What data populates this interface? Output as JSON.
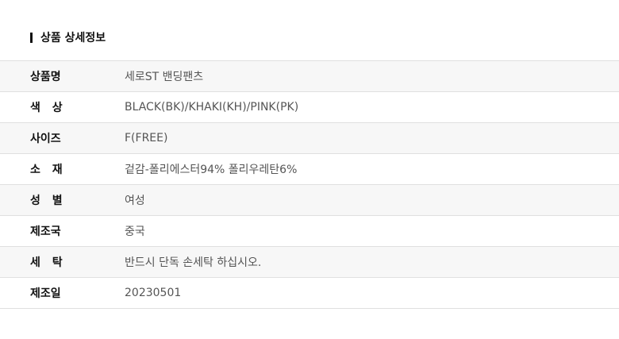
{
  "section_title": "상품 상세정보",
  "rows": [
    {
      "label": "상품명",
      "value": "세로ST 밴딩팬츠"
    },
    {
      "label": "색 상",
      "value": "BLACK(BK)/KHAKI(KH)/PINK(PK)"
    },
    {
      "label": "사이즈",
      "value": "F(FREE)"
    },
    {
      "label": "소 재",
      "value": "겉감-폴리에스터94% 폴리우레탄6%"
    },
    {
      "label": "성 별",
      "value": "여성"
    },
    {
      "label": "제조국",
      "value": "중국"
    },
    {
      "label": "세 탁",
      "value": "반드시 단독 손세탁 하십시오."
    },
    {
      "label": "제조일",
      "value": "20230501"
    }
  ]
}
